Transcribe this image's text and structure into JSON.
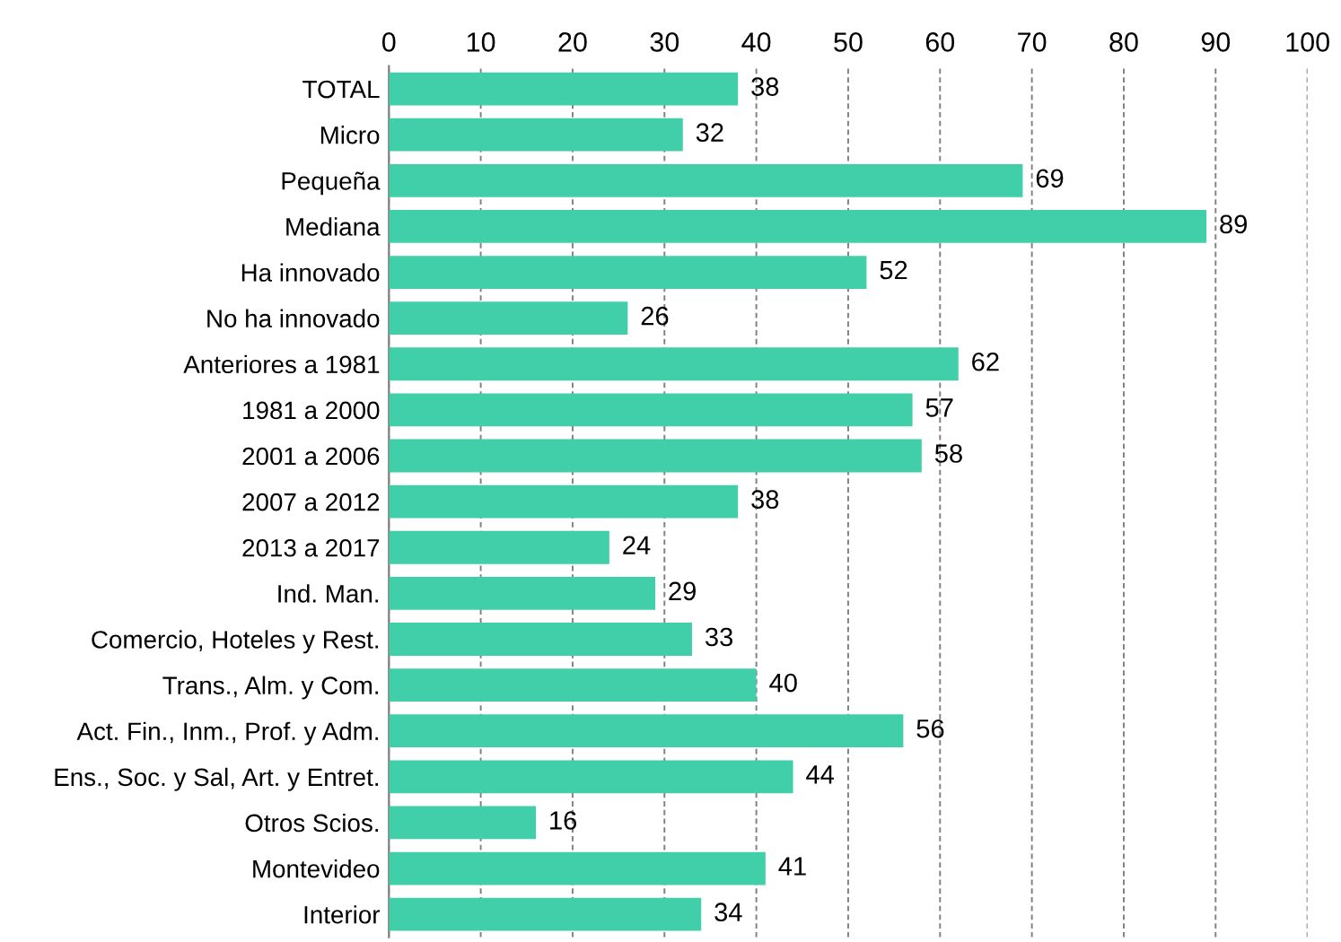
{
  "chart_data": {
    "type": "bar",
    "orientation": "horizontal",
    "categories": [
      "TOTAL",
      "Micro",
      "Pequeña",
      "Mediana",
      "Ha innovado",
      "No ha innovado",
      "Anteriores a 1981",
      "1981 a 2000",
      "2001 a 2006",
      "2007 a 2012",
      "2013 a 2017",
      "Ind. Man.",
      "Comercio, Hoteles y Rest.",
      "Trans., Alm. y Com.",
      "Act. Fin., Inm., Prof. y Adm.",
      "Ens., Soc. y Sal, Art. y Entret.",
      "Otros Scios.",
      "Montevideo",
      "Interior"
    ],
    "values": [
      38,
      32,
      69,
      89,
      52,
      26,
      62,
      57,
      58,
      38,
      24,
      29,
      33,
      40,
      56,
      44,
      16,
      41,
      34
    ],
    "color": "#40cfa8",
    "xlim": [
      0,
      100
    ],
    "xticks": [
      0,
      10,
      20,
      30,
      40,
      50,
      60,
      70,
      80,
      90,
      100
    ],
    "grid": "x",
    "data_labels": true
  }
}
